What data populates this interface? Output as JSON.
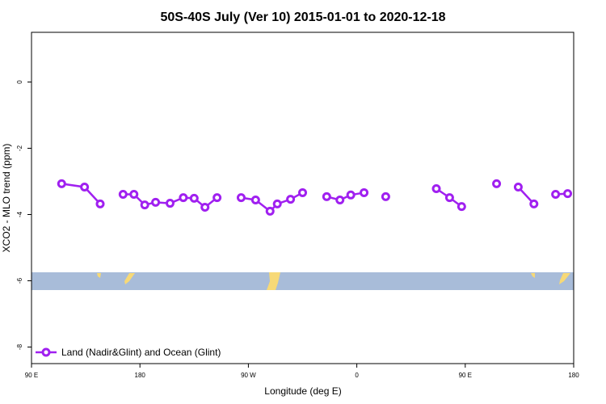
{
  "chart_data": {
    "type": "line",
    "title": "50S-40S July (Ver 10)   2015-01-01 to 2020-12-18",
    "x_label": "Longitude (deg E)",
    "y_label": "XCO2 - MLO trend (ppm)",
    "xlim": [
      90,
      540
    ],
    "xticks": [
      {
        "value": 90,
        "label": "90 E"
      },
      {
        "value": 180,
        "label": "180"
      },
      {
        "value": 270,
        "label": "90 W"
      },
      {
        "value": 360,
        "label": "0"
      },
      {
        "value": 450,
        "label": "90 E"
      },
      {
        "value": 540,
        "label": "180"
      }
    ],
    "ylim": [
      -8.5,
      1.5
    ],
    "yticks": [
      0,
      -2,
      -4,
      -6,
      -8
    ],
    "legend": "bottom-left",
    "series": [
      {
        "name": "Land (Nadir&Glint) and Ocean (Glint)",
        "color": "#a020f0",
        "x": [
          115,
          134,
          147,
          156,
          166,
          175,
          184,
          193,
          205,
          216,
          225,
          234,
          244,
          254,
          264,
          276,
          288,
          294,
          305,
          315,
          325,
          335,
          346,
          355,
          366,
          375,
          384,
          405,
          426,
          437,
          447,
          461,
          476,
          485,
          494,
          507,
          516,
          525,
          535
        ],
        "values": [
          -3.07,
          -3.17,
          -3.68,
          null,
          -3.39,
          -3.39,
          -3.71,
          -3.63,
          -3.66,
          -3.49,
          -3.51,
          -3.78,
          -3.49,
          null,
          -3.49,
          -3.56,
          -3.9,
          -3.68,
          -3.54,
          -3.34,
          null,
          -3.46,
          -3.56,
          -3.41,
          -3.34,
          null,
          -3.46,
          null,
          -3.22,
          -3.49,
          -3.76,
          null,
          -3.07,
          null,
          -3.17,
          -3.68,
          null,
          -3.39,
          -3.37
        ]
      }
    ]
  }
}
